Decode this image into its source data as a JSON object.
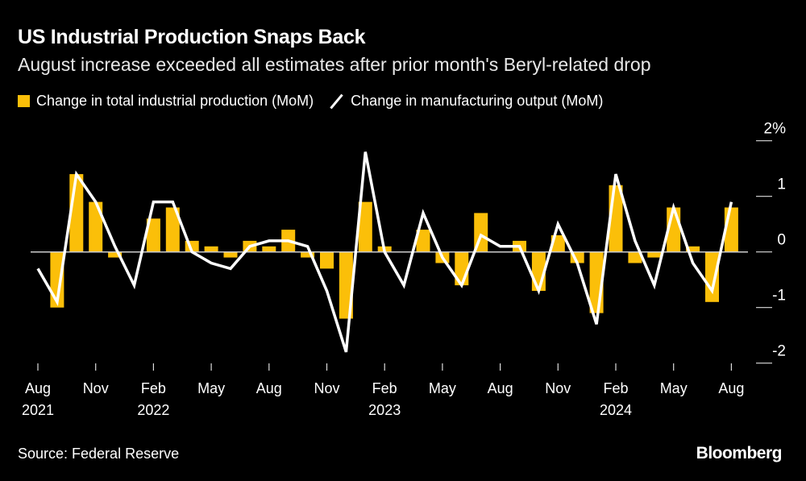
{
  "chart_data": {
    "type": "bar+line",
    "title": "US Industrial Production Snaps Back",
    "subtitle": "August increase exceeded all estimates after prior month's Beryl-related drop",
    "source": "Source: Federal Reserve",
    "logo": "Bloomberg",
    "x_range": [
      "Aug 2021",
      "Aug 2024"
    ],
    "x_ticks": [
      {
        "month": "Aug",
        "year": "2021"
      },
      {
        "month": "Nov",
        "year": ""
      },
      {
        "month": "Feb",
        "year": "2022"
      },
      {
        "month": "May",
        "year": ""
      },
      {
        "month": "Aug",
        "year": ""
      },
      {
        "month": "Nov",
        "year": ""
      },
      {
        "month": "Feb",
        "year": "2023"
      },
      {
        "month": "May",
        "year": ""
      },
      {
        "month": "Aug",
        "year": ""
      },
      {
        "month": "Nov",
        "year": ""
      },
      {
        "month": "Feb",
        "year": "2024"
      },
      {
        "month": "May",
        "year": ""
      },
      {
        "month": "Aug",
        "year": ""
      }
    ],
    "y_ticks": [
      "2%",
      "1",
      "0",
      "-1",
      "-2"
    ],
    "ylim": [
      -2,
      2
    ],
    "grid": false,
    "legend_position": "top-left",
    "series": [
      {
        "name": "Change in total industrial production (MoM)",
        "kind": "bar",
        "color": "#fbbf09",
        "values": [
          0.0,
          -1.0,
          1.4,
          0.9,
          -0.1,
          0.0,
          0.6,
          0.8,
          0.2,
          0.1,
          -0.1,
          0.2,
          0.1,
          0.4,
          -0.1,
          -0.3,
          -1.2,
          0.9,
          0.1,
          0.0,
          0.4,
          -0.2,
          -0.6,
          0.7,
          0.0,
          0.2,
          -0.7,
          0.3,
          -0.2,
          -1.1,
          1.2,
          -0.2,
          -0.1,
          0.8,
          0.1,
          -0.9,
          0.8
        ]
      },
      {
        "name": "Change in manufacturing output (MoM)",
        "kind": "line",
        "color": "#ffffff",
        "values": [
          -0.3,
          -0.9,
          1.4,
          0.9,
          0.1,
          -0.6,
          0.9,
          0.9,
          0.0,
          -0.2,
          -0.3,
          0.1,
          0.2,
          0.2,
          0.1,
          -0.7,
          -1.8,
          1.8,
          0.0,
          -0.6,
          0.7,
          -0.1,
          -0.6,
          0.3,
          0.1,
          0.1,
          -0.7,
          0.5,
          -0.2,
          -1.3,
          1.4,
          0.2,
          -0.6,
          0.8,
          -0.2,
          -0.7,
          0.9
        ]
      }
    ]
  }
}
